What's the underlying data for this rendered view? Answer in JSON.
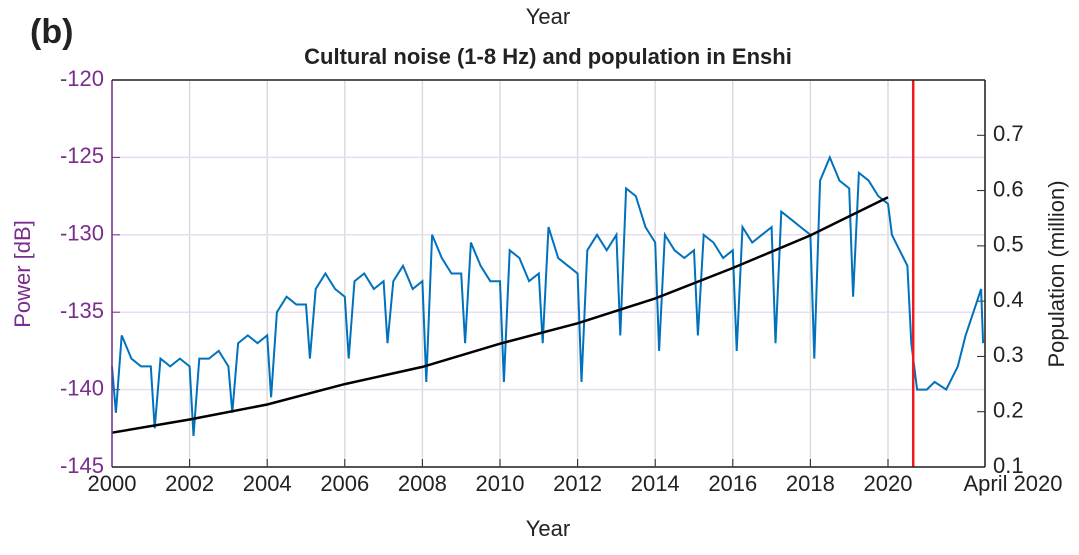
{
  "chart_data": {
    "type": "line",
    "panel_label": "(b)",
    "top_axis_label": "Year",
    "title": "Cultural noise (1-8 Hz) and population in Enshi",
    "xlabel": "Year",
    "ylabel": "Power [dB]",
    "y2label": "Population (million)",
    "xlim": [
      2000,
      2022.5
    ],
    "xticks": [
      2000,
      2002,
      2004,
      2006,
      2008,
      2010,
      2012,
      2014,
      2016,
      2018,
      2020,
      {
        "value": 2022.5,
        "label": "April 2020"
      }
    ],
    "ylim": [
      -145,
      -120
    ],
    "yticks": [
      -145,
      -140,
      -135,
      -130,
      -125,
      -120
    ],
    "y2lim": [
      0.1,
      0.8
    ],
    "y2ticks": [
      0.1,
      0.2,
      0.3,
      0.4,
      0.5,
      0.6,
      0.7
    ],
    "grid": true,
    "ycolor": "#7b2d8e",
    "vline": {
      "x": 2020.65,
      "color": "#ee1c1c"
    },
    "series": [
      {
        "color": "#0072bd",
        "axis": "y",
        "x": [
          2000,
          2000.1,
          2000.25,
          2000.5,
          2000.75,
          2001,
          2001.1,
          2001.25,
          2001.5,
          2001.75,
          2002,
          2002.1,
          2002.25,
          2002.5,
          2002.75,
          2003,
          2003.1,
          2003.25,
          2003.5,
          2003.75,
          2004,
          2004.1,
          2004.25,
          2004.5,
          2004.75,
          2005,
          2005.1,
          2005.25,
          2005.5,
          2005.75,
          2006,
          2006.1,
          2006.25,
          2006.5,
          2006.75,
          2007,
          2007.1,
          2007.25,
          2007.5,
          2007.75,
          2008,
          2008.1,
          2008.25,
          2008.5,
          2008.75,
          2009,
          2009.1,
          2009.25,
          2009.5,
          2009.75,
          2010,
          2010.1,
          2010.25,
          2010.5,
          2010.75,
          2011,
          2011.1,
          2011.25,
          2011.5,
          2011.75,
          2012,
          2012.1,
          2012.25,
          2012.5,
          2012.75,
          2013,
          2013.1,
          2013.25,
          2013.5,
          2013.75,
          2014,
          2014.1,
          2014.25,
          2014.5,
          2014.75,
          2015,
          2015.1,
          2015.25,
          2015.5,
          2015.75,
          2016,
          2016.1,
          2016.25,
          2016.5,
          2016.75,
          2017,
          2017.1,
          2017.25,
          2017.5,
          2017.75,
          2018,
          2018.1,
          2018.25,
          2018.5,
          2018.75,
          2019,
          2019.1,
          2019.25,
          2019.5,
          2019.75,
          2020,
          2020.1,
          2020.3,
          2020.5,
          2020.6,
          2020.75,
          2021,
          2021.2,
          2021.5,
          2021.8,
          2022,
          2022.2,
          2022.4,
          2022.45
        ],
        "values": [
          -138.5,
          -141.5,
          -136.5,
          -138,
          -138.5,
          -138.5,
          -142.5,
          -138,
          -138.5,
          -138,
          -138.5,
          -143,
          -138,
          -138,
          -137.5,
          -138.5,
          -141.5,
          -137,
          -136.5,
          -137,
          -136.5,
          -140.5,
          -135,
          -134,
          -134.5,
          -134.5,
          -138,
          -133.5,
          -132.5,
          -133.5,
          -134,
          -138,
          -133,
          -132.5,
          -133.5,
          -133,
          -137,
          -133,
          -132,
          -133.5,
          -133,
          -139.5,
          -130,
          -131.5,
          -132.5,
          -132.5,
          -137,
          -130.5,
          -132,
          -133,
          -133,
          -139.5,
          -131,
          -131.5,
          -133,
          -132.5,
          -137,
          -129.5,
          -131.5,
          -132,
          -132.5,
          -139.5,
          -131,
          -130,
          -131,
          -130,
          -136.5,
          -127,
          -127.5,
          -129.5,
          -130.5,
          -137.5,
          -130,
          -131,
          -131.5,
          -131,
          -136.5,
          -130,
          -130.5,
          -131.5,
          -131,
          -137.5,
          -129.5,
          -130.5,
          -130,
          -129.5,
          -137,
          -128.5,
          -129,
          -129.5,
          -130,
          -138,
          -126.5,
          -125,
          -126.5,
          -127,
          -134,
          -126,
          -126.5,
          -127.5,
          -128,
          -130,
          -131,
          -132,
          -137,
          -140,
          -140,
          -139.5,
          -140,
          -138.5,
          -136.5,
          -135,
          -133.5,
          -137
        ]
      },
      {
        "color": "#000000",
        "axis": "y2",
        "x": [
          2000,
          2002,
          2004,
          2006,
          2008,
          2010,
          2012,
          2014,
          2016,
          2018,
          2020
        ],
        "values": [
          0.162,
          0.186,
          0.213,
          0.25,
          0.281,
          0.323,
          0.36,
          0.405,
          0.46,
          0.519,
          0.588
        ]
      }
    ]
  }
}
